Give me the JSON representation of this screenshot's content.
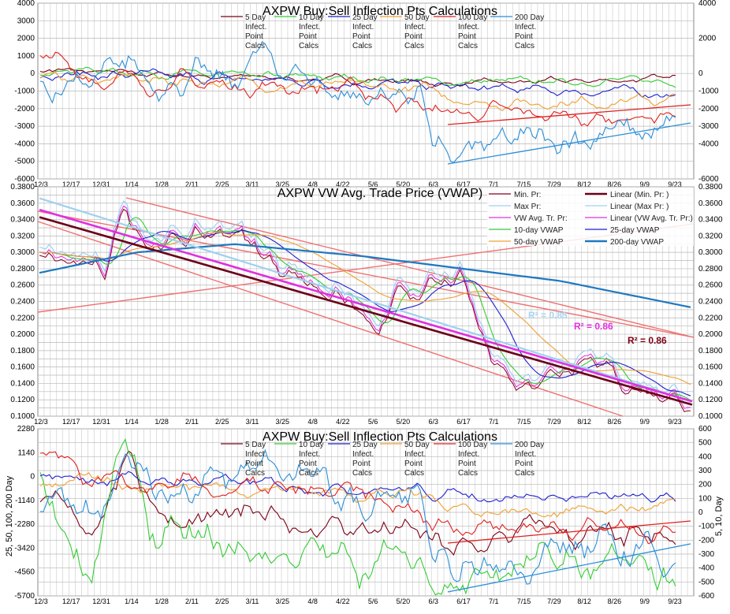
{
  "x_dates": [
    "12/3",
    "12/17",
    "12/31",
    "1/14",
    "1/28",
    "2/11",
    "2/25",
    "3/11",
    "3/25",
    "4/8",
    "4/22",
    "5/6",
    "5/20",
    "6/3",
    "6/17",
    "7/1",
    "7/15",
    "7/29",
    "8/12",
    "8/26",
    "9/9",
    "9/23"
  ],
  "chart_data": [
    {
      "type": "line",
      "title": "AXPW Buy:Sell Inflection Pts Calculations",
      "y_left_ticks": [
        "4000",
        "3000",
        "2000",
        "1000",
        "0",
        "-1000",
        "-2000",
        "-3000",
        "-4000",
        "-5000",
        "-6000"
      ],
      "y_right_ticks": [
        "4000",
        "2000",
        "0",
        "-1000",
        "-2000",
        "-3000",
        "-4000",
        "-6000"
      ],
      "ylim": [
        -6000,
        4000
      ],
      "grid": true,
      "legend": "top",
      "series": [
        {
          "name": "5 Day Infect. Point Calcs",
          "color": "#7b0016"
        },
        {
          "name": "10 Day Infect. Point Calcs",
          "color": "#33cc33"
        },
        {
          "name": "25 Day Infect. Point Calcs",
          "color": "#1f1fd0"
        },
        {
          "name": "50 Day Infect. Point Calcs",
          "color": "#f0a030"
        },
        {
          "name": "100 Day Infect. Point Calcs",
          "color": "#e02020"
        },
        {
          "name": "200 Day Infect. Point Calcs",
          "color": "#2a8ed8"
        }
      ]
    },
    {
      "type": "line",
      "title": "AXPW VW Avg. Trade Price (VWAP)",
      "y_ticks": [
        "0.3800",
        "0.3600",
        "0.3400",
        "0.3200",
        "0.3000",
        "0.2800",
        "0.2600",
        "0.2400",
        "0.2200",
        "0.2000",
        "0.1800",
        "0.1600",
        "0.1400",
        "0.1200",
        "0.1000"
      ],
      "ylim": [
        0.1,
        0.38
      ],
      "grid": true,
      "legend": "top-right",
      "series": [
        {
          "name": "Min. Pr:",
          "color": "#8b0020"
        },
        {
          "name": "Linear (Min. Pr: )",
          "color": "#6b0018"
        },
        {
          "name": "Max Pr:",
          "color": "#9fd0f0"
        },
        {
          "name": "Linear (Max Pr: )",
          "color": "#9fd0f0"
        },
        {
          "name": "VW Avg. Tr. Pr:",
          "color": "#e030e0"
        },
        {
          "name": "Linear (VW Avg. Tr. Pr:)",
          "color": "#e030e0"
        },
        {
          "name": "10-day VWAP",
          "color": "#33cc33"
        },
        {
          "name": "25-day VWAP",
          "color": "#1f1fd0"
        },
        {
          "name": "50-day VWAP",
          "color": "#f0a030"
        },
        {
          "name": "200-day VWAP",
          "color": "#1e78c0"
        }
      ],
      "annotations": [
        {
          "text": "R² = 0.85",
          "color": "#a8d4f0"
        },
        {
          "text": "R² = 0.86",
          "color": "#e030e0"
        },
        {
          "text": "R² = 0.86",
          "color": "#7b0016"
        }
      ]
    },
    {
      "type": "line",
      "title": "AXPW Buy:Sell Inflection Pts Calculations",
      "y_left_ticks": [
        "2280",
        "1140",
        "0",
        "-1140",
        "-2280",
        "-3420",
        "-4560",
        "-5700"
      ],
      "y_right_ticks": [
        "600",
        "500",
        "400",
        "300",
        "200",
        "100",
        "0",
        "-100",
        "-200",
        "-300",
        "-400",
        "-500",
        "-600"
      ],
      "ylabel_left": "25, 50, 100, 200 Day",
      "ylabel_right": "5, 10, Day",
      "ylim_left": [
        -5700,
        2280
      ],
      "ylim_right": [
        -600,
        600
      ],
      "grid": true,
      "legend": "top",
      "series": [
        {
          "name": "5 Day Infect. Point Calcs",
          "color": "#7b0016"
        },
        {
          "name": "10 Day Infect. Point Calcs",
          "color": "#33cc33"
        },
        {
          "name": "25 Day Infect. Point Calcs",
          "color": "#1f1fd0"
        },
        {
          "name": "50 Day Infect. Point Calcs",
          "color": "#f0a030"
        },
        {
          "name": "100 Day Infect. Point Calcs",
          "color": "#e02020"
        },
        {
          "name": "200 Day Infect. Point Calcs",
          "color": "#2a8ed8"
        }
      ]
    }
  ]
}
